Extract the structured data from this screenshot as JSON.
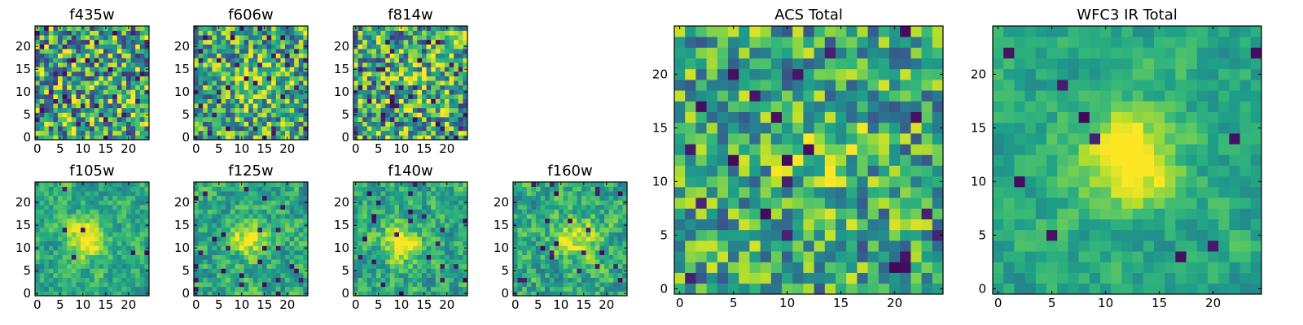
{
  "figure": {
    "background": "#ffffff"
  },
  "colormap": {
    "name": "viridis"
  },
  "chart_data": [
    {
      "type": "heatmap",
      "title": "f435w",
      "grid": false,
      "xlim": [
        0,
        24
      ],
      "ylim": [
        0,
        24
      ],
      "xticks": [
        0,
        5,
        10,
        15,
        20
      ],
      "yticks": [
        0,
        5,
        10,
        15,
        20
      ],
      "pattern": {
        "seed": 11,
        "noise": 0.9,
        "smoothing": 0.0,
        "blob_amp": 0.0,
        "blob_center": [
          12,
          12
        ],
        "dark_prob": 0.05
      }
    },
    {
      "type": "heatmap",
      "title": "f606w",
      "grid": false,
      "xlim": [
        0,
        24
      ],
      "ylim": [
        0,
        24
      ],
      "xticks": [
        0,
        5,
        10,
        15,
        20
      ],
      "yticks": [
        0,
        5,
        10,
        15,
        20
      ],
      "pattern": {
        "seed": 23,
        "noise": 0.85,
        "smoothing": 0.1,
        "blob_amp": 0.25,
        "blob_center": [
          13,
          12
        ],
        "dark_prob": 0.05
      }
    },
    {
      "type": "heatmap",
      "title": "f814w",
      "grid": false,
      "xlim": [
        0,
        24
      ],
      "ylim": [
        0,
        24
      ],
      "xticks": [
        0,
        5,
        10,
        15,
        20
      ],
      "yticks": [
        0,
        5,
        10,
        15,
        20
      ],
      "pattern": {
        "seed": 37,
        "noise": 0.9,
        "smoothing": 0.05,
        "blob_amp": 0.15,
        "blob_center": [
          12,
          12
        ],
        "dark_prob": 0.05
      }
    },
    {
      "type": "heatmap",
      "title": "f105w",
      "grid": false,
      "xlim": [
        0,
        24
      ],
      "ylim": [
        0,
        24
      ],
      "xticks": [
        0,
        5,
        10,
        15,
        20
      ],
      "yticks": [
        0,
        5,
        10,
        15,
        20
      ],
      "pattern": {
        "seed": 41,
        "noise": 0.55,
        "smoothing": 0.5,
        "blob_amp": 0.45,
        "blob_center": [
          11,
          12
        ],
        "dark_prob": 0.02
      }
    },
    {
      "type": "heatmap",
      "title": "f125w",
      "grid": false,
      "xlim": [
        0,
        24
      ],
      "ylim": [
        0,
        24
      ],
      "xticks": [
        0,
        5,
        10,
        15,
        20
      ],
      "yticks": [
        0,
        5,
        10,
        15,
        20
      ],
      "pattern": {
        "seed": 53,
        "noise": 0.6,
        "smoothing": 0.45,
        "blob_amp": 0.35,
        "blob_center": [
          12,
          12
        ],
        "dark_prob": 0.03
      }
    },
    {
      "type": "heatmap",
      "title": "f140w",
      "grid": false,
      "xlim": [
        0,
        24
      ],
      "ylim": [
        0,
        24
      ],
      "xticks": [
        0,
        5,
        10,
        15,
        20
      ],
      "yticks": [
        0,
        5,
        10,
        15,
        20
      ],
      "pattern": {
        "seed": 67,
        "noise": 0.6,
        "smoothing": 0.45,
        "blob_amp": 0.35,
        "blob_center": [
          10,
          11
        ],
        "dark_prob": 0.03
      }
    },
    {
      "type": "heatmap",
      "title": "f160w",
      "grid": false,
      "xlim": [
        0,
        24
      ],
      "ylim": [
        0,
        24
      ],
      "xticks": [
        0,
        5,
        10,
        15,
        20
      ],
      "yticks": [
        0,
        5,
        10,
        15,
        20
      ],
      "pattern": {
        "seed": 79,
        "noise": 0.6,
        "smoothing": 0.4,
        "blob_amp": 0.4,
        "blob_center": [
          13,
          12
        ],
        "dark_prob": 0.03
      }
    },
    {
      "type": "heatmap",
      "title": "ACS Total",
      "grid": false,
      "xlim": [
        0,
        24
      ],
      "ylim": [
        0,
        24
      ],
      "xticks": [
        0,
        5,
        10,
        15,
        20
      ],
      "yticks": [
        0,
        5,
        10,
        15,
        20
      ],
      "pattern": {
        "seed": 97,
        "noise": 0.75,
        "smoothing": 0.1,
        "blob_amp": 0.2,
        "blob_center": [
          13,
          13
        ],
        "dark_prob": 0.04
      }
    },
    {
      "type": "heatmap",
      "title": "WFC3 IR Total",
      "grid": false,
      "xlim": [
        0,
        24
      ],
      "ylim": [
        0,
        24
      ],
      "xticks": [
        0,
        5,
        10,
        15,
        20
      ],
      "yticks": [
        0,
        5,
        10,
        15,
        20
      ],
      "pattern": {
        "seed": 131,
        "noise": 0.45,
        "smoothing": 0.55,
        "blob_amp": 0.55,
        "blob_center": [
          12,
          12
        ],
        "dark_prob": 0.015
      }
    }
  ]
}
